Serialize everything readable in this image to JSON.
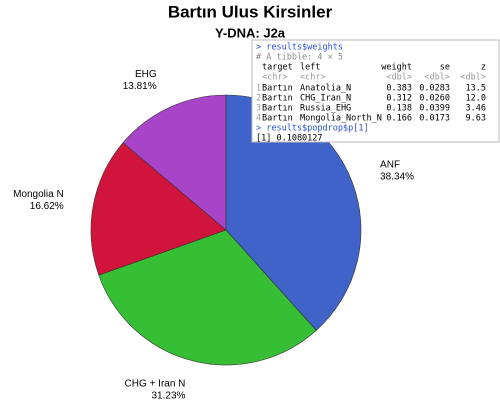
{
  "chart_data": {
    "type": "pie",
    "title": "Bartın Ulus Kirsinler",
    "subtitle": "Y-DNA: J2a",
    "categories": [
      "ANF",
      "CHG + Iran N",
      "Mongolia N",
      "EHG"
    ],
    "values": [
      38.34,
      31.23,
      16.62,
      13.81
    ],
    "value_labels": [
      "38.34%",
      "31.23%",
      "16.62%",
      "13.81%"
    ],
    "colors": [
      "#3f63c9",
      "#36bf35",
      "#d0143c",
      "#a844c8"
    ]
  },
  "console": {
    "command1": "> results$weights",
    "comment": "# A tibble: 4 × 5",
    "headers": [
      "target",
      "left",
      "weight",
      "se",
      "z"
    ],
    "types": [
      "<chr>",
      "<chr>",
      "<dbl>",
      "<dbl>",
      "<dbl>"
    ],
    "rows": [
      [
        "1",
        "Bartın",
        "Anatolia_N",
        "0.383",
        "0.0283",
        "13.5"
      ],
      [
        "2",
        "Bartın",
        "CHG_Iran_N",
        "0.312",
        "0.0260",
        "12.0"
      ],
      [
        "3",
        "Bartın",
        "Russia_EHG",
        "0.138",
        "0.0399",
        "3.46"
      ],
      [
        "4",
        "Bartın",
        "Mongolia_North_N",
        "0.166",
        "0.0173",
        "9.63"
      ]
    ],
    "command2": "> results$popdrop$p[1]",
    "output": "[1] 0.1080127"
  }
}
